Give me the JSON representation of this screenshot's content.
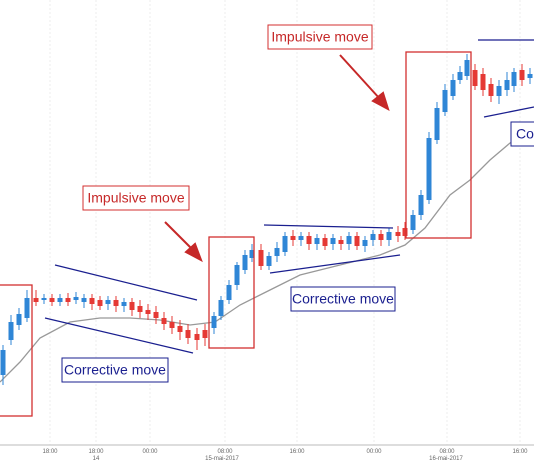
{
  "annotations": {
    "impulsive": [
      "Impulsive move",
      "Impulsive move"
    ],
    "corrective": [
      "Corrective move",
      "Corrective move",
      "Corrective move"
    ]
  },
  "x_axis": {
    "times": [
      "18:00",
      "18:00",
      "00:00",
      "08:00",
      "16:00",
      "00:00",
      "08:00",
      "16:00"
    ],
    "dates": [
      "14",
      "15-mai-2017",
      "16-mai-2017"
    ]
  }
}
